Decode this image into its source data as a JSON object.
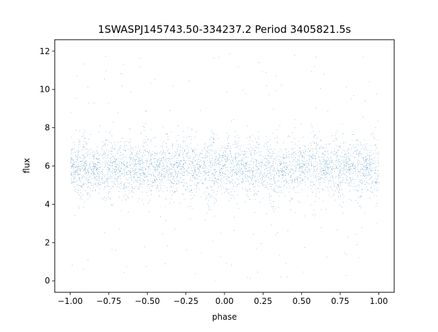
{
  "chart_data": {
    "type": "scatter",
    "title": "1SWASPJ145743.50-334237.2 Period 3405821.5s",
    "xlabel": "phase",
    "ylabel": "flux",
    "xlim": [
      -1.1,
      1.1
    ],
    "ylim": [
      -0.6,
      12.6
    ],
    "xticks": [
      -1.0,
      -0.75,
      -0.5,
      -0.25,
      0.0,
      0.25,
      0.5,
      0.75,
      1.0
    ],
    "xtick_labels": [
      "−1.00",
      "−0.75",
      "−0.50",
      "−0.25",
      "0.00",
      "0.25",
      "0.50",
      "0.75",
      "1.00"
    ],
    "yticks": [
      0,
      2,
      4,
      6,
      8,
      10,
      12
    ],
    "ytick_labels": [
      "0",
      "2",
      "4",
      "6",
      "8",
      "10",
      "12"
    ],
    "grid": false,
    "legend": "none",
    "series": [
      {
        "color": "#1f77b4",
        "x_range": [
          -1.0,
          1.0
        ],
        "y_range": [
          0.0,
          12.0
        ],
        "median_flux": 5.9,
        "typical_band": [
          4.0,
          8.0
        ],
        "point_count_approx": 30000
      }
    ]
  }
}
